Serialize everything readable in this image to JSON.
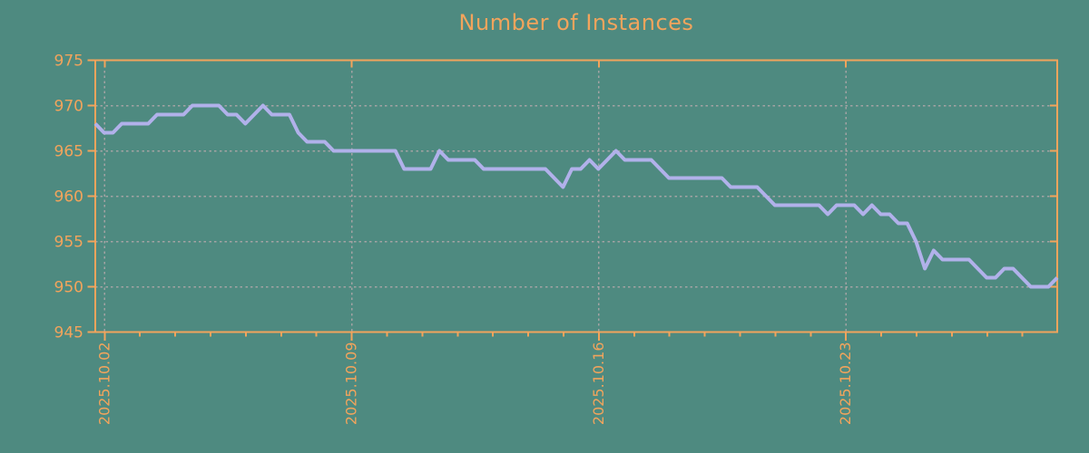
{
  "colors": {
    "background": "#4e8a80",
    "axis": "#f2a45c",
    "grid": "#a3a3a3",
    "line": "#b1b1ea"
  },
  "chart_data": {
    "type": "line",
    "title": "Number of Instances",
    "xlabel": "",
    "ylabel": "",
    "ylim": [
      945,
      975
    ],
    "y_ticks": [
      945,
      950,
      955,
      960,
      965,
      970,
      975
    ],
    "grid": true,
    "legend": "none",
    "x_major_labels": [
      "2025.10.02",
      "2025.10.09",
      "2025.10.16",
      "2025.10.23"
    ],
    "x_first_tick_day": 0.265,
    "x_minor_tick_every_days": 1,
    "x_major_tick_every_days": 7,
    "x_total_days": 27.25,
    "points_per_day": 4,
    "series": [
      {
        "name": "instances",
        "values": [
          968,
          967,
          967,
          968,
          968,
          968,
          968,
          969,
          969,
          969,
          969,
          970,
          970,
          970,
          970,
          969,
          969,
          968,
          969,
          970,
          969,
          969,
          969,
          967,
          966,
          966,
          966,
          965,
          965,
          965,
          965,
          965,
          965,
          965,
          965,
          963,
          963,
          963,
          963,
          965,
          964,
          964,
          964,
          964,
          963,
          963,
          963,
          963,
          963,
          963,
          963,
          963,
          962,
          961,
          963,
          963,
          964,
          963,
          964,
          965,
          964,
          964,
          964,
          964,
          963,
          962,
          962,
          962,
          962,
          962,
          962,
          962,
          961,
          961,
          961,
          961,
          960,
          959,
          959,
          959,
          959,
          959,
          959,
          958,
          959,
          959,
          959,
          958,
          959,
          958,
          958,
          957,
          957,
          955,
          952,
          954,
          953,
          953,
          953,
          953,
          952,
          951,
          951,
          952,
          952,
          951,
          950,
          950,
          950,
          951
        ]
      }
    ]
  }
}
